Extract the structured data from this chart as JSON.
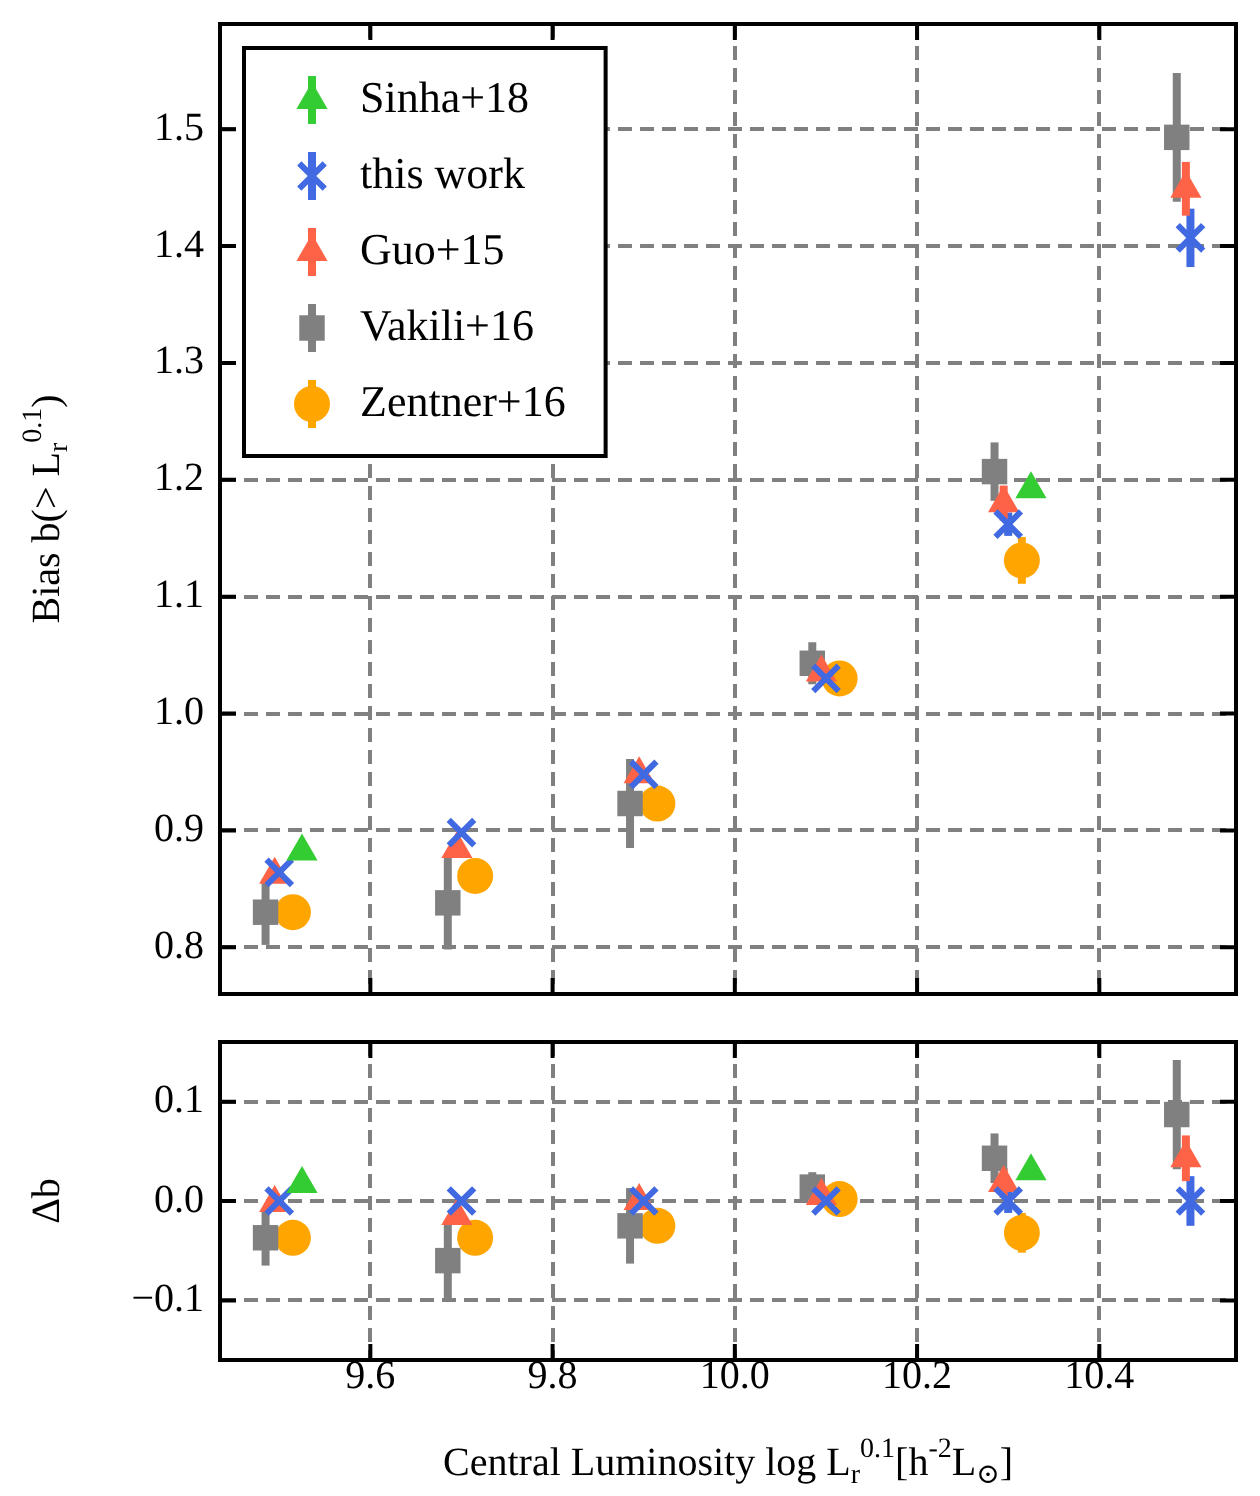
{
  "chart_data": [
    {
      "type": "scatter",
      "ylabel": "Bias b(> L$_{r}$$^{0.1}$)",
      "xlim": [
        9.435,
        10.55
      ],
      "xticks": [
        9.6,
        9.8,
        10,
        10.2,
        10.4
      ],
      "ylim": [
        0.76,
        1.59
      ],
      "yticks": [
        0.8,
        0.9,
        {
          "value": 1,
          "label": "1.0"
        },
        1.1,
        1.2,
        1.3,
        1.4,
        1.5
      ],
      "tick_labels": "y",
      "grid": true,
      "legend": "top left",
      "series": [
        {
          "name": "Sinha+18",
          "color": "#33cc33",
          "marker": "triangle",
          "x": [
            9.525,
            10.325
          ],
          "values": [
            0.882,
            1.192
          ]
        },
        {
          "name": "this work",
          "color": "#4169e1",
          "marker": "cross",
          "x": [
            9.5,
            9.7,
            9.9,
            10.1,
            10.3,
            10.5
          ],
          "values": [
            0.864,
            0.898,
            0.948,
            1.03,
            1.162,
            1.407
          ],
          "errors": [
            null,
            null,
            null,
            null,
            0.01,
            0.025
          ]
        },
        {
          "name": "Guo+15",
          "color": "#ff6347",
          "marker": "triangle",
          "x": [
            9.495,
            9.695,
            9.895,
            10.095,
            10.295,
            10.495
          ],
          "values": [
            0.862,
            0.884,
            0.948,
            1.035,
            1.18,
            1.449
          ],
          "errors": [
            null,
            null,
            null,
            null,
            0.015,
            0.023
          ]
        },
        {
          "name": "Vakili+16",
          "color": "#808080",
          "marker": "square",
          "x": [
            9.485,
            9.685,
            9.885,
            10.085,
            10.285,
            10.485
          ],
          "values": [
            0.83,
            0.838,
            0.923,
            1.043,
            1.207,
            1.493
          ],
          "errors": [
            0.028,
            0.04,
            0.038,
            0.018,
            0.025,
            0.055
          ]
        },
        {
          "name": "Zentner+16",
          "color": "#ffa500",
          "marker": "circle",
          "x": [
            9.515,
            9.715,
            9.915,
            10.115,
            10.315
          ],
          "values": [
            0.83,
            0.861,
            0.923,
            1.03,
            1.131
          ],
          "errors": [
            0.012,
            0.013,
            0.012,
            0.008,
            0.02
          ]
        }
      ]
    },
    {
      "type": "scatter",
      "xlabel": "Central Luminosity log L$_{r}$$^{0.1}$[h$^{-2}$L$_{⊙}$]",
      "ylabel": "Δb",
      "xlim": [
        9.435,
        10.55
      ],
      "xticks": [
        9.6,
        9.8,
        {
          "value": 10,
          "label": "10.0"
        },
        10.2,
        10.4
      ],
      "ylim": [
        -0.16,
        0.16
      ],
      "yticks": [
        {
          "value": -0.1,
          "label": "−0.1"
        },
        {
          "value": 0,
          "label": "0.0"
        },
        0.1
      ],
      "grid": true,
      "series": [
        {
          "color": "#33cc33",
          "marker": "triangle",
          "x": [
            9.525,
            10.325
          ],
          "values": [
            0.017,
            0.03
          ]
        },
        {
          "color": "#4169e1",
          "marker": "cross",
          "x": [
            9.5,
            9.7,
            9.9,
            10.1,
            10.3,
            10.5
          ],
          "values": [
            0,
            0,
            0,
            0,
            0,
            0
          ],
          "errors": [
            null,
            null,
            null,
            null,
            0.012,
            0.025
          ]
        },
        {
          "color": "#ff6347",
          "marker": "triangle",
          "x": [
            9.495,
            9.695,
            9.895,
            10.095,
            10.295,
            10.495
          ],
          "values": [
            -0.002,
            -0.015,
            0,
            0.005,
            0.018,
            0.043
          ],
          "errors": [
            null,
            null,
            null,
            null,
            0.015,
            0.023
          ]
        },
        {
          "color": "#808080",
          "marker": "square",
          "x": [
            9.485,
            9.685,
            9.885,
            10.085,
            10.285,
            10.485
          ],
          "values": [
            -0.037,
            -0.06,
            -0.025,
            0.014,
            0.043,
            0.087
          ],
          "errors": [
            0.028,
            0.04,
            0.038,
            0.015,
            0.025,
            0.055
          ]
        },
        {
          "color": "#ffa500",
          "marker": "circle",
          "x": [
            9.515,
            9.715,
            9.915,
            10.115,
            10.315
          ],
          "values": [
            -0.037,
            -0.037,
            -0.025,
            0.002,
            -0.032
          ],
          "errors": [
            0.012,
            0.013,
            0.012,
            0.008,
            0.02
          ]
        }
      ]
    }
  ]
}
